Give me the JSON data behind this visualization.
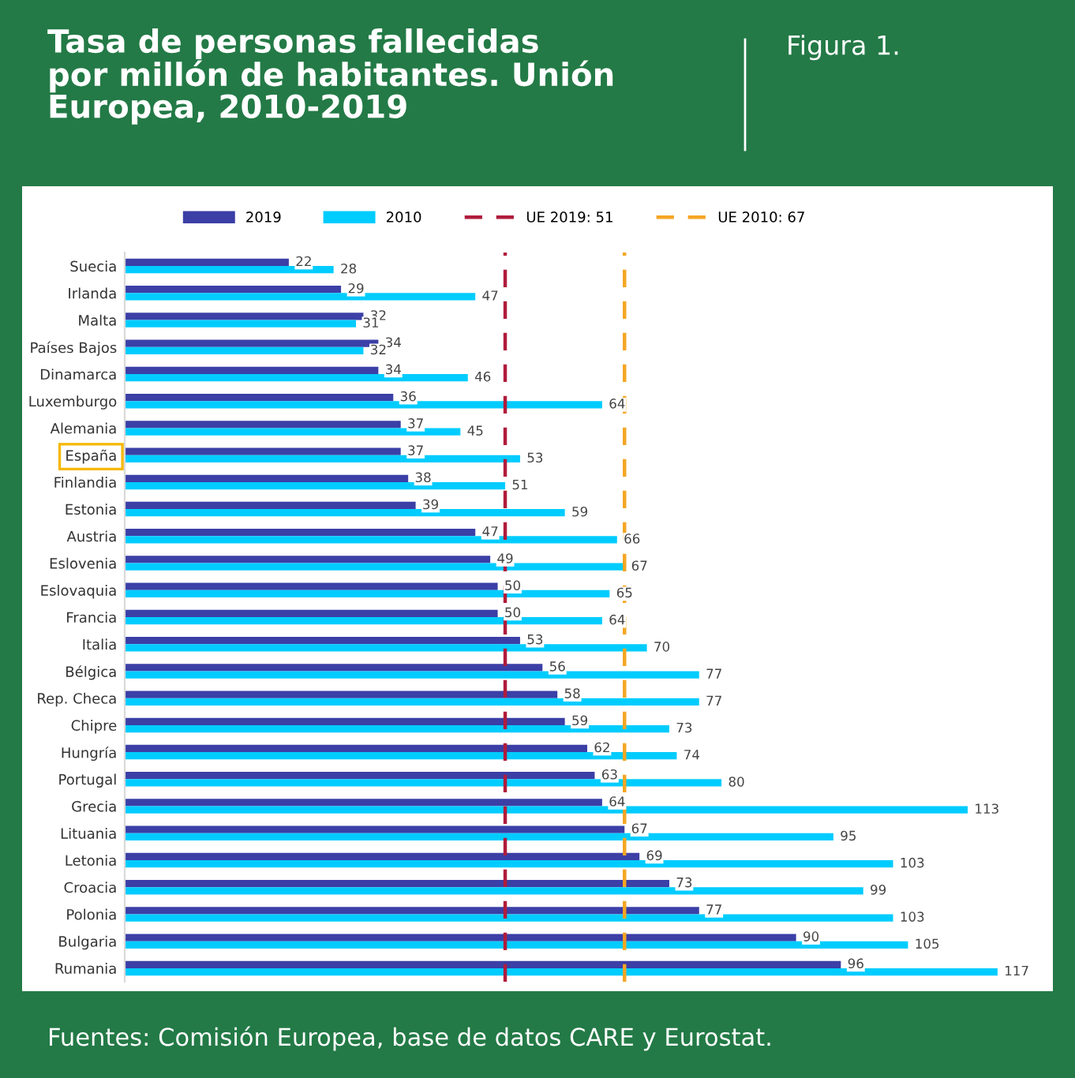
{
  "chart_data": {
    "type": "bar",
    "orientation": "horizontal",
    "title": "Tasa de personas fallecidas\npor millón de habitantes. Unión\nEuropea, 2010-2019",
    "subtitle": "Figura 1.",
    "annotations": [
      "Fuentes: Comisión Europea, base de datos CARE y Eurostat."
    ],
    "categories": [
      "Suecia",
      "Irlanda",
      "Malta",
      "Países Bajos",
      "Dinamarca",
      "Luxemburgo",
      "Alemania",
      "España",
      "Finlandia",
      "Estonia",
      "Austria",
      "Eslovenia",
      "Eslovaquia",
      "Francia",
      "Italia",
      "Bélgica",
      "Rep. Checa",
      "Chipre",
      "Hungría",
      "Portugal",
      "Grecia",
      "Lituania",
      "Letonia",
      "Croacia",
      "Polonia",
      "Bulgaria",
      "Rumania"
    ],
    "series": [
      {
        "name": "2019",
        "color": "#3b3fa6",
        "values": [
          22,
          29,
          32,
          34,
          34,
          36,
          37,
          37,
          38,
          39,
          47,
          49,
          50,
          50,
          53,
          56,
          58,
          59,
          62,
          63,
          64,
          67,
          69,
          73,
          77,
          90,
          96
        ]
      },
      {
        "name": "2010",
        "color": "#00ccff",
        "values": [
          28,
          47,
          31,
          32,
          46,
          64,
          45,
          53,
          51,
          59,
          66,
          67,
          65,
          64,
          70,
          77,
          77,
          73,
          74,
          80,
          113,
          95,
          103,
          99,
          103,
          105,
          117
        ]
      }
    ],
    "ref_lines": [
      {
        "axis": "x",
        "value": 51,
        "label": "UE 2019: 51",
        "color": "#b01c3c",
        "line_style": "dashed"
      },
      {
        "axis": "x",
        "value": 67,
        "label": "UE 2010: 67",
        "color": "#f5a623",
        "line_style": "dashed"
      }
    ],
    "xlim": [
      0,
      124
    ],
    "data_labels": true,
    "tick_labels": "y",
    "grid": false,
    "legend": "top"
  }
}
